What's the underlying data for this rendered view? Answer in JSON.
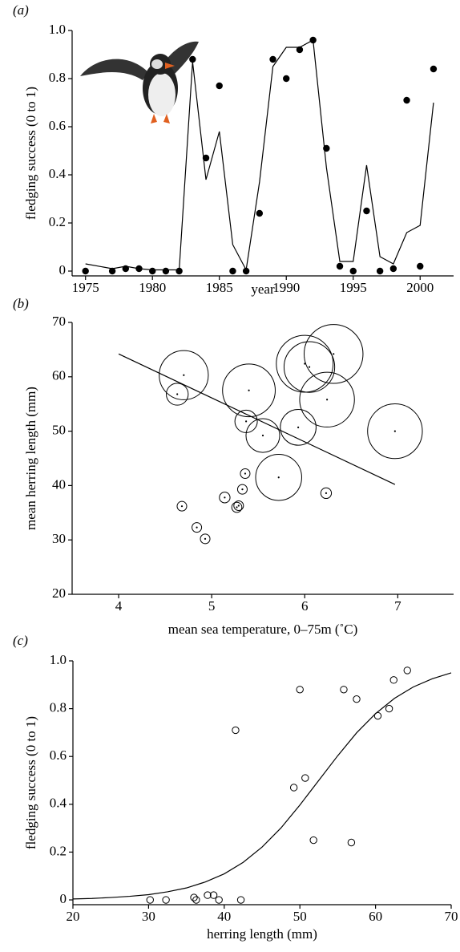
{
  "chart_data": [
    {
      "type": "scatter",
      "panel_label": "(a)",
      "xlabel": "year",
      "ylabel": "fledging success (0 to 1)",
      "xlim": [
        1974,
        2002.5
      ],
      "xticks": [
        1975,
        1980,
        1985,
        1990,
        1995,
        2000
      ],
      "ylim": [
        -0.02,
        1
      ],
      "yticks": [
        0,
        0.2,
        0.4,
        0.6,
        0.8,
        {
          "value": 1,
          "label": "1.0"
        }
      ],
      "series": [
        {
          "style": "points",
          "color": "#000000",
          "x": [
            1975,
            1977,
            1978,
            1979,
            1980,
            1981,
            1982,
            1983,
            1984,
            1985,
            1986,
            1987,
            1988,
            1989,
            1990,
            1991,
            1992,
            1993,
            1994,
            1995,
            1996,
            1997,
            1998,
            1999,
            2000,
            2001
          ],
          "values": [
            0,
            0,
            0.01,
            0.01,
            0,
            0,
            0,
            0.88,
            0.47,
            0.77,
            0,
            0,
            0.24,
            0.88,
            0.8,
            0.92,
            0.96,
            0.51,
            0.02,
            0,
            0.25,
            0,
            0.01,
            0.71,
            0.02,
            0.84
          ]
        },
        {
          "style": "line",
          "color": "#000000",
          "x": [
            1975,
            1977,
            1978,
            1979,
            1980,
            1981,
            1982,
            1983,
            1984,
            1985,
            1986,
            1987,
            1988,
            1989,
            1990,
            1991,
            1992,
            1993,
            1994,
            1995,
            1996,
            1997,
            1998,
            1999,
            2000,
            2001
          ],
          "values": [
            0.03,
            0.01,
            0.02,
            0.01,
            0.005,
            0.005,
            0.005,
            0.87,
            0.38,
            0.58,
            0.11,
            0.005,
            0.37,
            0.85,
            0.93,
            0.93,
            0.96,
            0.43,
            0.04,
            0.04,
            0.44,
            0.06,
            0.03,
            0.16,
            0.19,
            0.7
          ]
        }
      ]
    },
    {
      "type": "scatter",
      "panel_label": "(b)",
      "xlabel": "mean sea temperature, 0–75m (˚C)",
      "ylabel": "mean herring length (mm)",
      "xlim": [
        3.5,
        7.6
      ],
      "xticks": [
        4,
        5,
        6,
        7
      ],
      "ylim": [
        20,
        70
      ],
      "yticks": [
        20,
        30,
        40,
        50,
        60,
        70
      ],
      "series": [
        {
          "style": "bubble",
          "color": "#000000",
          "x": [
            4.63,
            4.7,
            5.4,
            5.37,
            5.55,
            5.93,
            6.0,
            6.05,
            6.31,
            6.24,
            6.97,
            5.72,
            4.68,
            4.84,
            4.93,
            5.14,
            5.27,
            5.29,
            5.33,
            5.36,
            6.23
          ],
          "values": [
            56.8,
            60.3,
            57.5,
            51.8,
            49.2,
            50.7,
            62.4,
            61.8,
            64.2,
            55.8,
            50.0,
            41.5,
            36.2,
            32.3,
            30.2,
            37.8,
            36.0,
            36.3,
            39.3,
            42.2,
            38.6
          ],
          "sizes": [
            0.24,
            0.77,
            0.84,
            0.25,
            0.47,
            0.51,
            0.92,
            0.8,
            0.96,
            0.88,
            0.88,
            0.71,
            0,
            0,
            0,
            0.02,
            0.01,
            0,
            0,
            0,
            0.02
          ]
        },
        {
          "style": "line",
          "color": "#000000",
          "x": [
            4.0,
            6.97
          ],
          "values": [
            64.2,
            40.2
          ]
        }
      ]
    },
    {
      "type": "scatter",
      "panel_label": "(c)",
      "xlabel": "herring length (mm)",
      "ylabel": "fledging success (0 to 1)",
      "xlim": [
        20,
        70
      ],
      "xticks": [
        20,
        30,
        40,
        50,
        60,
        70
      ],
      "ylim": [
        -0.02,
        1
      ],
      "yticks": [
        0,
        0.2,
        0.4,
        0.6,
        0.8,
        {
          "value": 1,
          "label": "1.0"
        }
      ],
      "series": [
        {
          "style": "open",
          "color": "#000000",
          "x": [
            30.2,
            32.3,
            36.0,
            36.3,
            37.8,
            38.6,
            39.3,
            42.2,
            41.5,
            49.2,
            50.0,
            50.7,
            51.8,
            55.8,
            56.8,
            57.5,
            60.3,
            61.8,
            62.4,
            64.2
          ],
          "values": [
            0,
            0,
            0.01,
            0,
            0.02,
            0.02,
            0,
            0,
            0.71,
            0.47,
            0.88,
            0.51,
            0.25,
            0.88,
            0.24,
            0.84,
            0.77,
            0.8,
            0.92,
            0.96
          ]
        },
        {
          "style": "line",
          "color": "#000000",
          "x": [
            20,
            22.5,
            25,
            27.5,
            30,
            32.5,
            35,
            37.5,
            40,
            42.5,
            45,
            47.5,
            50,
            52.5,
            55,
            57.5,
            60,
            62.5,
            65,
            67.5,
            70
          ],
          "values": [
            0.004,
            0.006,
            0.01,
            0.015,
            0.022,
            0.034,
            0.05,
            0.075,
            0.109,
            0.157,
            0.221,
            0.301,
            0.397,
            0.5,
            0.603,
            0.699,
            0.779,
            0.843,
            0.891,
            0.925,
            0.95
          ]
        }
      ]
    }
  ]
}
